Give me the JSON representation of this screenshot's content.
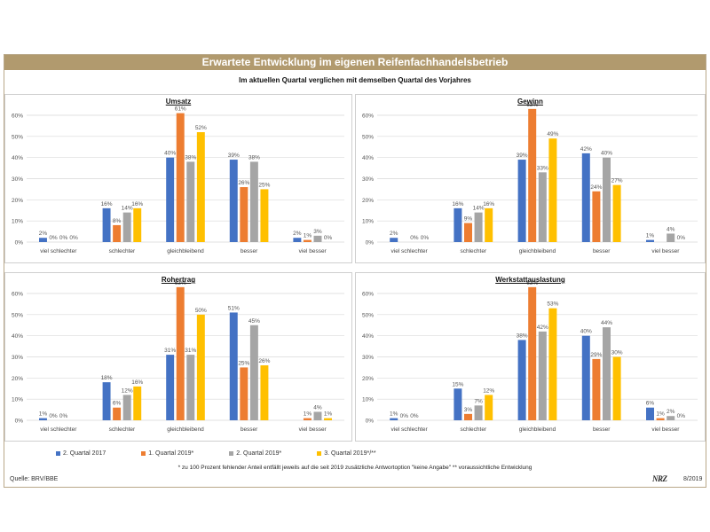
{
  "header": {
    "title": "Erwartete Entwicklung im eigenen Reifenfachhandelsbetrieb",
    "subtitle": "Im aktuellen Quartal verglichen mit demselben Quartal des Vorjahres"
  },
  "colors": {
    "series": [
      "#4472c4",
      "#ed7d31",
      "#a5a5a5",
      "#ffc000"
    ]
  },
  "legend": [
    "2. Quartal 2017",
    "1. Quartal 2019*",
    "2. Quartal 2019*",
    "3. Quartal 2019*/**"
  ],
  "footnote": "* zu 100 Prozent fehlender Anteil entfällt jeweils auf die seit 2019 zusätzliche Antwortoption \"keine Angabe\"   ** voraussichtliche Entwicklung",
  "source": "Quelle: BRV/BBE",
  "logo": "NRZ",
  "date": "8/2019",
  "chart_data": [
    {
      "type": "bar",
      "title": "Umsatz",
      "categories": [
        "viel schlechter",
        "schlechter",
        "gleichbleibend",
        "besser",
        "viel besser"
      ],
      "yticks": [
        "0%",
        "10%",
        "20%",
        "30%",
        "40%",
        "50%",
        "60%"
      ],
      "ylim": [
        0,
        60
      ],
      "series": [
        {
          "name": "2. Quartal 2017",
          "values": [
            2,
            16,
            40,
            39,
            2
          ],
          "labels": [
            "2%",
            "16%",
            "40%",
            "39%",
            "2%"
          ]
        },
        {
          "name": "1. Quartal 2019*",
          "values": [
            0,
            8,
            61,
            26,
            1
          ],
          "labels": [
            "0%",
            "8%",
            "61%",
            "26%",
            "1%"
          ]
        },
        {
          "name": "2. Quartal 2019*",
          "values": [
            0,
            14,
            38,
            38,
            3
          ],
          "labels": [
            "0%",
            "14%",
            "38%",
            "38%",
            "3%"
          ]
        },
        {
          "name": "3. Quartal 2019*/**",
          "values": [
            0,
            16,
            52,
            25,
            0
          ],
          "labels": [
            "0%",
            "16%",
            "52%",
            "25%",
            "0%"
          ]
        }
      ]
    },
    {
      "type": "bar",
      "title": "Gewinn",
      "categories": [
        "viel schlechter",
        "schlechter",
        "gleichbleibend",
        "besser",
        "viel besser"
      ],
      "yticks": [
        "0%",
        "10%",
        "20%",
        "30%",
        "40%",
        "50%",
        "60%"
      ],
      "ylim": [
        0,
        60
      ],
      "series": [
        {
          "name": "2. Quartal 2017",
          "values": [
            2,
            16,
            39,
            42,
            1
          ],
          "labels": [
            "2%",
            "16%",
            "39%",
            "42%",
            "1%"
          ]
        },
        {
          "name": "1. Quartal 2019*",
          "values": [
            0,
            9,
            63,
            24,
            0
          ],
          "labels": [
            "",
            "9%",
            "63%",
            "24%",
            ""
          ]
        },
        {
          "name": "2. Quartal 2019*",
          "values": [
            0,
            14,
            33,
            40,
            4
          ],
          "labels": [
            "0%",
            "14%",
            "33%",
            "40%",
            "4%"
          ]
        },
        {
          "name": "3. Quartal 2019*/**",
          "values": [
            0,
            16,
            49,
            27,
            0
          ],
          "labels": [
            "0%",
            "16%",
            "49%",
            "27%",
            "0%"
          ]
        }
      ]
    },
    {
      "type": "bar",
      "title": "Rohertrag",
      "categories": [
        "viel schlechter",
        "schlechter",
        "gleichbleibend",
        "besser",
        "viel besser"
      ],
      "yticks": [
        "0%",
        "10%",
        "20%",
        "30%",
        "40%",
        "50%",
        "60%"
      ],
      "ylim": [
        0,
        60
      ],
      "series": [
        {
          "name": "2. Quartal 2017",
          "values": [
            1,
            18,
            31,
            51,
            0
          ],
          "labels": [
            "1%",
            "18%",
            "31%",
            "51%",
            ""
          ]
        },
        {
          "name": "1. Quartal 2019*",
          "values": [
            0,
            6,
            63,
            25,
            1
          ],
          "labels": [
            "0%",
            "6%",
            "63%",
            "25%",
            "1%"
          ]
        },
        {
          "name": "2. Quartal 2019*",
          "values": [
            0,
            12,
            31,
            45,
            4
          ],
          "labels": [
            "0%",
            "12%",
            "31%",
            "45%",
            "4%"
          ]
        },
        {
          "name": "3. Quartal 2019*/**",
          "values": [
            0,
            16,
            50,
            26,
            1
          ],
          "labels": [
            "",
            "16%",
            "50%",
            "26%",
            "1%"
          ]
        }
      ]
    },
    {
      "type": "bar",
      "title": "Werkstattauslastung",
      "categories": [
        "viel schlechter",
        "schlechter",
        "gleichbleibend",
        "besser",
        "viel besser"
      ],
      "yticks": [
        "0%",
        "10%",
        "20%",
        "30%",
        "40%",
        "50%",
        "60%"
      ],
      "ylim": [
        0,
        60
      ],
      "series": [
        {
          "name": "2. Quartal 2017",
          "values": [
            1,
            15,
            38,
            40,
            6
          ],
          "labels": [
            "1%",
            "15%",
            "38%",
            "40%",
            "6%"
          ]
        },
        {
          "name": "1. Quartal 2019*",
          "values": [
            0,
            3,
            63,
            29,
            1
          ],
          "labels": [
            "0%",
            "3%",
            "63%",
            "29%",
            "1%"
          ]
        },
        {
          "name": "2. Quartal 2019*",
          "values": [
            0,
            7,
            42,
            44,
            2
          ],
          "labels": [
            "0%",
            "7%",
            "42%",
            "44%",
            "2%"
          ]
        },
        {
          "name": "3. Quartal 2019*/**",
          "values": [
            0,
            12,
            53,
            30,
            0
          ],
          "labels": [
            "",
            "12%",
            "53%",
            "30%",
            "0%"
          ]
        }
      ]
    }
  ]
}
